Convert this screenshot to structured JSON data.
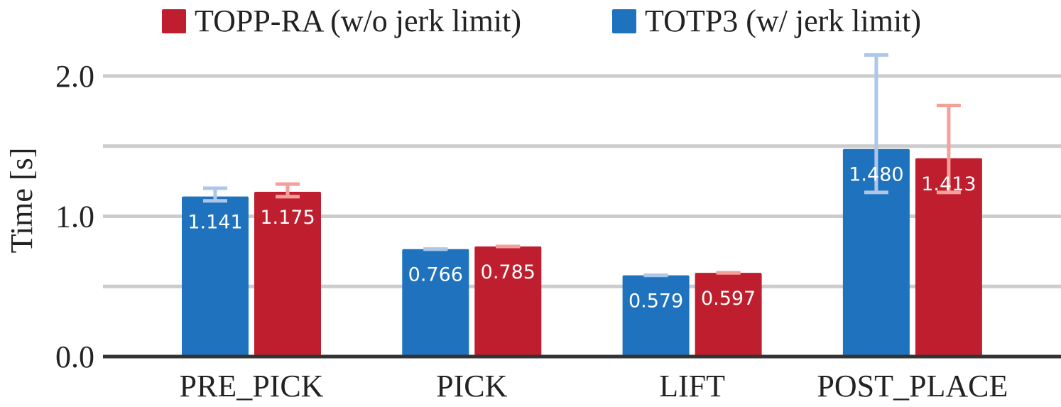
{
  "chart_data": {
    "type": "bar",
    "ylabel": "Time [s]",
    "xlabel": "",
    "ylim": [
      0,
      2.0
    ],
    "yticks": [
      {
        "value": 0.0,
        "label": "0.0"
      },
      {
        "value": 1.0,
        "label": "1.0"
      },
      {
        "value": 2.0,
        "label": "2.0"
      }
    ],
    "gridlines": [
      0.5,
      1.0,
      1.5,
      2.0
    ],
    "categories": [
      "PRE_PICK",
      "PICK",
      "LIFT",
      "POST_PLACE"
    ],
    "legend_position": "top-center",
    "legend_order": [
      1,
      0
    ],
    "series": [
      {
        "name": "TOTP3 (w/ jerk limit)",
        "color": "#1f72be",
        "error_color": "#aec7e8",
        "values": [
          1.141,
          0.766,
          0.579,
          1.48
        ],
        "labels": [
          "1.141",
          "0.766",
          "0.579",
          "1.480"
        ],
        "error_low": [
          1.11,
          0.766,
          0.579,
          1.17
        ],
        "error_high": [
          1.2,
          0.766,
          0.579,
          2.15
        ]
      },
      {
        "name": "TOPP-RA (w/o jerk limit)",
        "color": "#be1e2d",
        "error_color": "#f4a09a",
        "values": [
          1.175,
          0.785,
          0.597,
          1.413
        ],
        "labels": [
          "1.175",
          "0.785",
          "0.597",
          "1.413"
        ],
        "error_low": [
          1.14,
          0.785,
          0.597,
          1.17
        ],
        "error_high": [
          1.23,
          0.785,
          0.597,
          1.79
        ]
      }
    ]
  }
}
